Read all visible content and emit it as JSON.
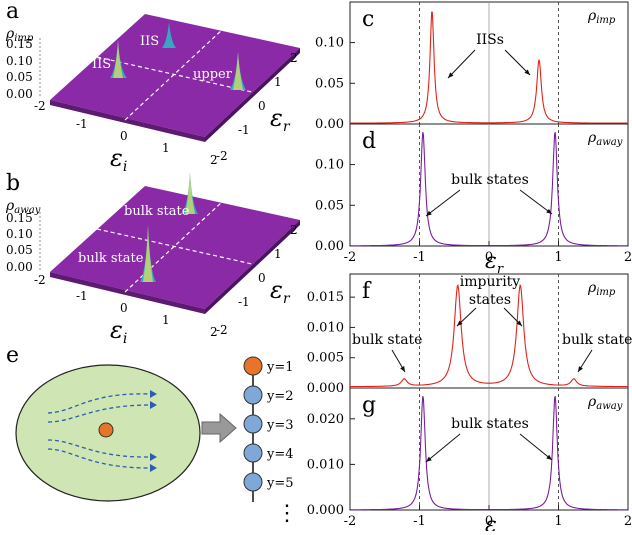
{
  "panels": {
    "a": {
      "letter": "a",
      "rho": "ρ",
      "rho_sub": "imp",
      "z_ticks": [
        "0.15",
        "0.10",
        "0.05",
        "0.00"
      ],
      "labels": [
        "IIS",
        "IIS",
        "upper"
      ],
      "ei_ticks": [
        "-2",
        "-1",
        "0",
        "1",
        "2"
      ],
      "er_ticks": [
        "2",
        "1",
        "0",
        "-1",
        "-2"
      ],
      "ei_label": "ε",
      "ei_sub": "i",
      "er_label": "ε",
      "er_sub": "r"
    },
    "b": {
      "letter": "b",
      "rho": "ρ",
      "rho_sub": "away",
      "z_ticks": [
        "0.15",
        "0.10",
        "0.05",
        "0.00"
      ],
      "labels": [
        "bulk state",
        "bulk state"
      ],
      "ei_ticks": [
        "-2",
        "-1",
        "0",
        "1",
        "2"
      ],
      "er_ticks": [
        "2",
        "1",
        "0",
        "-1",
        "-2"
      ],
      "ei_label": "ε",
      "ei_sub": "i",
      "er_label": "ε",
      "er_sub": "r"
    },
    "c": {
      "letter": "c",
      "rho": "ρ",
      "rho_sub": "imp",
      "annotation": "IISs",
      "y_ticks": [
        "0.10",
        "0.05",
        "0.00"
      ]
    },
    "d": {
      "letter": "d",
      "rho": "ρ",
      "rho_sub": "away",
      "annotation": "bulk states",
      "y_ticks": [
        "0.10",
        "0.05",
        "0.00"
      ],
      "x_ticks": [
        "-2",
        "-1",
        "0",
        "1",
        "2"
      ],
      "x_label": "ε",
      "x_sub": "r"
    },
    "e": {
      "letter": "e",
      "sites": [
        "y=1",
        "y=2",
        "y=3",
        "y=4",
        "y=5"
      ],
      "ellipsis": "⋮"
    },
    "f": {
      "letter": "f",
      "rho": "ρ",
      "rho_sub": "imp",
      "annotation_top": "impurity",
      "annotation_bot": "states",
      "left_label": "bulk state",
      "right_label": "bulk state",
      "y_ticks": [
        "0.015",
        "0.010",
        "0.005",
        "0.000"
      ]
    },
    "g": {
      "letter": "g",
      "rho": "ρ",
      "rho_sub": "away",
      "annotation": "bulk states",
      "y_ticks": [
        "0.020",
        "0.010",
        "0.000"
      ],
      "x_ticks": [
        "-2",
        "-1",
        "0",
        "1",
        "2"
      ],
      "x_label": "ε"
    }
  },
  "colors": {
    "surface": "#8a2aa6",
    "red": "#e0241b",
    "purple": "#7a1fa0",
    "ellipse": "#cfe6b4",
    "orange": "#e8732a",
    "blue": "#7fa8d8"
  },
  "chart_data": [
    {
      "type": "line",
      "panel": "c",
      "xlim": [
        -2,
        2
      ],
      "ylim": [
        0,
        0.14
      ],
      "series": [
        {
          "values_note": "peaks",
          "x": [
            -0.82,
            0.72
          ],
          "y": [
            0.138,
            0.078
          ]
        }
      ]
    },
    {
      "type": "line",
      "panel": "d",
      "xlim": [
        -2,
        2
      ],
      "ylim": [
        0,
        0.14
      ],
      "series": [
        {
          "x": [
            -0.95,
            0.95
          ],
          "y": [
            0.14,
            0.14
          ]
        }
      ]
    },
    {
      "type": "line",
      "panel": "f",
      "xlim": [
        -2,
        2
      ],
      "ylim": [
        0,
        0.0175
      ],
      "series": [
        {
          "x": [
            -1.25,
            -0.45,
            0.45,
            1.25
          ],
          "y": [
            0.0013,
            0.0167,
            0.0167,
            0.0013
          ]
        }
      ]
    },
    {
      "type": "line",
      "panel": "g",
      "xlim": [
        -2,
        2
      ],
      "ylim": [
        0,
        0.025
      ],
      "series": [
        {
          "x": [
            -0.95,
            0.95
          ],
          "y": [
            0.025,
            0.025
          ]
        }
      ]
    }
  ]
}
